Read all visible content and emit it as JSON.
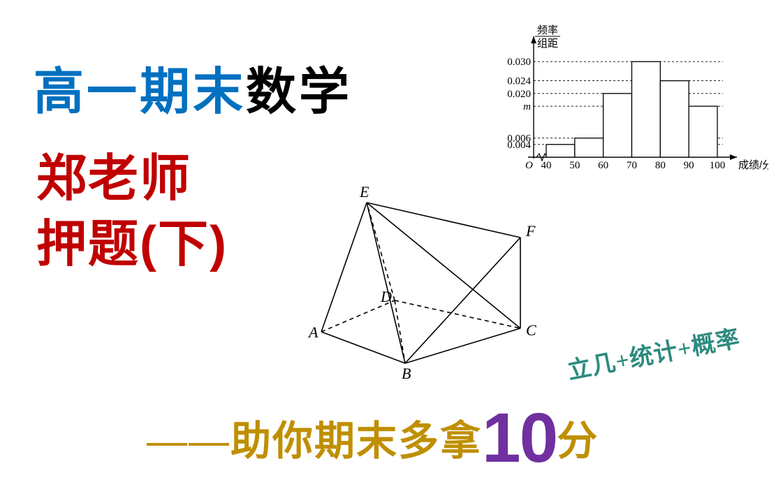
{
  "title": {
    "part1": "高一期末",
    "part2": "数学"
  },
  "teacher_line1": "郑老师",
  "teacher_line2": "押题(下)",
  "topics": "立几+统计+概率",
  "bottom": {
    "dash": "——",
    "text1": "助你期末多拿",
    "ten": "10",
    "text2": "分"
  },
  "prism": {
    "labels": {
      "A": "A",
      "B": "B",
      "C": "C",
      "D": "D",
      "E": "E",
      "F": "F"
    },
    "stroke": "#000000"
  },
  "histo": {
    "y_label_top": "频率",
    "y_label_bot": "组距",
    "x_label": "成绩/分数",
    "origin": "O",
    "x_ticks": [
      "40",
      "50",
      "60",
      "70",
      "80",
      "90",
      "100"
    ],
    "y_ticks": [
      {
        "v": 0.004,
        "label": "0.004"
      },
      {
        "v": 0.006,
        "label": "0.006"
      },
      {
        "v": 0.016,
        "label": "m"
      },
      {
        "v": 0.02,
        "label": "0.020"
      },
      {
        "v": 0.024,
        "label": "0.024"
      },
      {
        "v": 0.03,
        "label": "0.030"
      }
    ],
    "bars": [
      {
        "x0": 40,
        "x1": 50,
        "h": 0.004
      },
      {
        "x0": 50,
        "x1": 60,
        "h": 0.006
      },
      {
        "x0": 60,
        "x1": 70,
        "h": 0.02
      },
      {
        "x0": 70,
        "x1": 80,
        "h": 0.03
      },
      {
        "x0": 80,
        "x1": 90,
        "h": 0.024
      },
      {
        "x0": 90,
        "x1": 100,
        "h": 0.016
      }
    ],
    "x_range": [
      40,
      100
    ],
    "y_max": 0.034,
    "axis_color": "#000000",
    "bar_fill": "#ffffff",
    "bar_stroke": "#000000",
    "grid_dash": "3,3"
  }
}
